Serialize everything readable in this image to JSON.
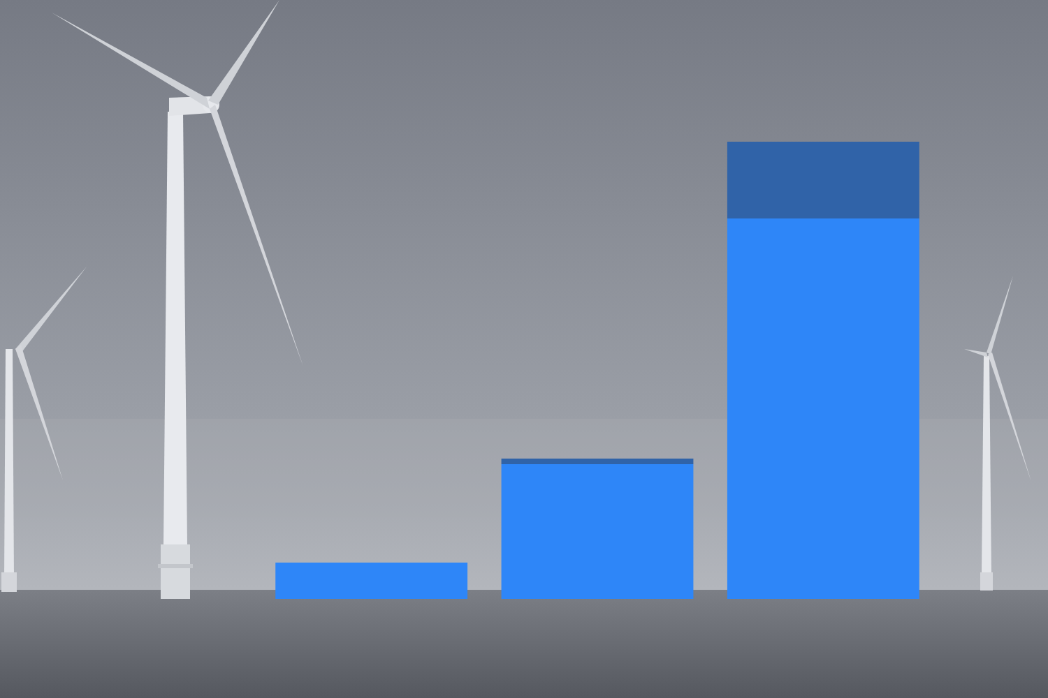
{
  "chart_data": {
    "type": "bar",
    "stacked": true,
    "categories": [
      null,
      null,
      null
    ],
    "series": [
      {
        "color": "#2e86f8",
        "values": [
          5.2,
          19.3,
          54.5
        ]
      },
      {
        "color": "#3063a8",
        "values": [
          0,
          0.8,
          11.0
        ]
      }
    ],
    "ylim": [
      0,
      65.5
    ],
    "grid": false,
    "tick_labels": false
  }
}
